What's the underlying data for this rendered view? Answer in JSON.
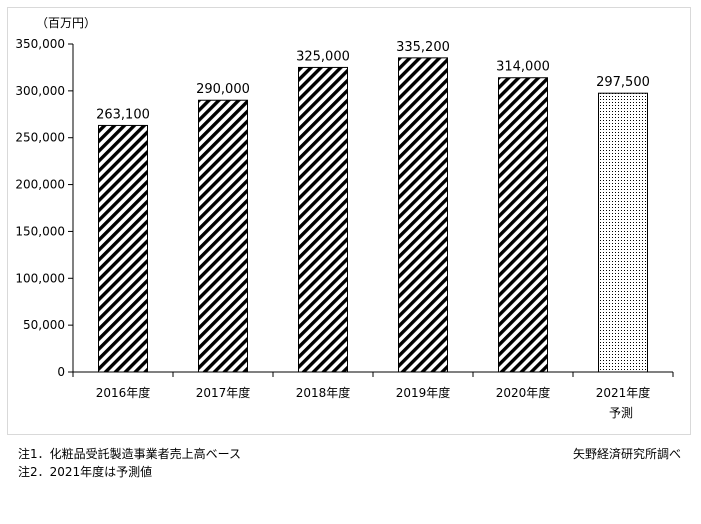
{
  "chart_data": {
    "type": "bar",
    "unit_label": "（百万円）",
    "categories": [
      "2016年度",
      "2017年度",
      "2018年度",
      "2019年度",
      "2020年度",
      "2021年度"
    ],
    "category_sublabels": [
      "",
      "",
      "",
      "",
      "",
      "予測"
    ],
    "values": [
      263100,
      290000,
      325000,
      335200,
      314000,
      297500
    ],
    "value_labels": [
      "263,100",
      "290,000",
      "325,000",
      "335,200",
      "314,000",
      "297,500"
    ],
    "bar_patterns": [
      "diagonal-hatch",
      "diagonal-hatch",
      "diagonal-hatch",
      "diagonal-hatch",
      "diagonal-hatch",
      "dotted"
    ],
    "forecast_index": 5,
    "ylim": [
      0,
      350000
    ],
    "yticks": [
      0,
      50000,
      100000,
      150000,
      200000,
      250000,
      300000,
      350000
    ],
    "ytick_labels": [
      "0",
      "50,000",
      "100,000",
      "150,000",
      "200,000",
      "250,000",
      "300,000",
      "350,000"
    ],
    "grid": false,
    "legend": "none",
    "colors": {
      "bar_fill": "#000000",
      "bar_background": "#ffffff",
      "axis": "#000000",
      "frame": "#d9d9d9"
    }
  },
  "notes": [
    "注1．化粧品受託製造事業者売上高ベース",
    "注2．2021年度は予測値"
  ],
  "source": "矢野経済研究所調べ"
}
